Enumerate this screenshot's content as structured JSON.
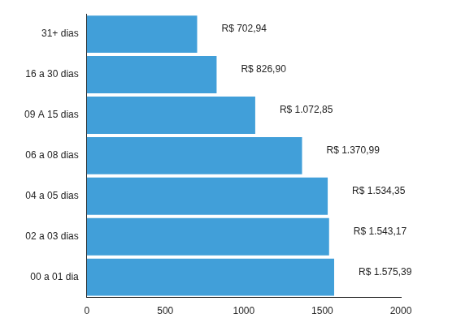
{
  "chart_data": {
    "type": "bar",
    "orientation": "horizontal",
    "categories": [
      "31+ dias",
      "16 a 30 dias",
      "09 A 15 dias",
      "06 a 08 dias",
      "04 a 05 dias",
      "02 a 03 dias",
      "00 a 01 dia"
    ],
    "values": [
      702.94,
      826.9,
      1072.85,
      1370.99,
      1534.35,
      1543.17,
      1575.39
    ],
    "value_labels": [
      "R$ 702,94",
      "R$ 826,90",
      "R$ 1.072,85",
      "R$ 1.370,99",
      "R$ 1.534,35",
      "R$ 1.543,17",
      "R$ 1.575,39"
    ],
    "data_labels": true,
    "color": "#419fd9",
    "xlim": [
      0,
      2000
    ],
    "xticks": [
      0,
      500,
      1000,
      1500,
      2000
    ],
    "grid": false
  }
}
